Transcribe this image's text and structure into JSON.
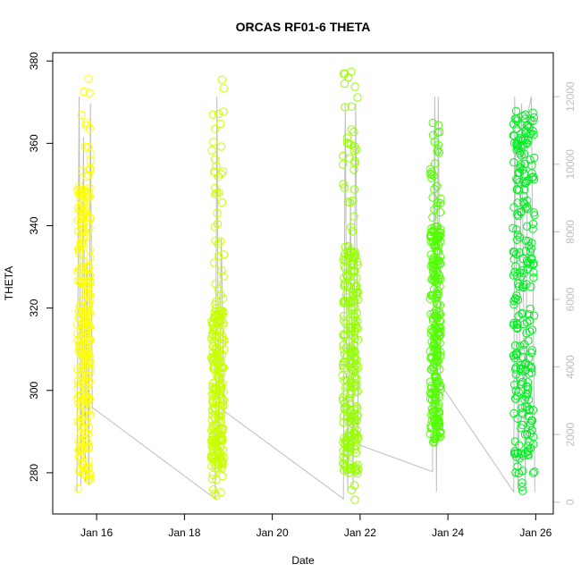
{
  "chart_data": {
    "type": "scatter",
    "title": "ORCAS RF01-6 THETA",
    "xlabel": "Date",
    "ylabel": "THETA",
    "x_ticks": [
      "Jan 16",
      "Jan 18",
      "Jan 20",
      "Jan 22",
      "Jan 24",
      "Jan 26"
    ],
    "x_tick_days": [
      16,
      18,
      20,
      22,
      24,
      26
    ],
    "xlim_days": [
      15.0,
      26.4
    ],
    "y_ticks": [
      280,
      300,
      320,
      340,
      360,
      380
    ],
    "ylim": [
      270,
      382
    ],
    "y2_ticks": [
      0,
      2000,
      4000,
      6000,
      8000,
      10000,
      12000
    ],
    "y2lim": [
      -350,
      13300
    ],
    "grid": false,
    "legend": "none",
    "series": [
      {
        "color": "#ffff00",
        "flight_start_day": 15.55,
        "flight_end_day": 15.88,
        "theta_range": [
          275,
          376
        ],
        "dense_theta_range": [
          278,
          350
        ]
      },
      {
        "color": "#c8ff00",
        "flight_start_day": 18.6,
        "flight_end_day": 18.92,
        "theta_range": [
          271,
          376
        ],
        "dense_theta_range": [
          281,
          320
        ]
      },
      {
        "color": "#96ff00",
        "flight_start_day": 21.58,
        "flight_end_day": 21.98,
        "theta_range": [
          273,
          378
        ],
        "dense_theta_range": [
          280,
          335
        ]
      },
      {
        "color": "#50ff00",
        "flight_start_day": 23.58,
        "flight_end_day": 23.85,
        "theta_range": [
          287,
          365
        ],
        "dense_theta_range": [
          288,
          340
        ]
      },
      {
        "color": "#00ee20",
        "flight_start_day": 25.45,
        "flight_end_day": 26.0,
        "theta_range": [
          272,
          370
        ],
        "dense_theta_range": [
          280,
          368
        ]
      }
    ],
    "altitude_line": {
      "color": "#bdbdbd",
      "points": [
        [
          15.55,
          300
        ],
        [
          15.6,
          12000
        ],
        [
          15.64,
          500
        ],
        [
          15.7,
          10800
        ],
        [
          15.74,
          600
        ],
        [
          15.78,
          7200
        ],
        [
          15.82,
          500
        ],
        [
          15.86,
          11800
        ],
        [
          15.9,
          2800
        ],
        [
          18.7,
          100
        ],
        [
          18.74,
          12000
        ],
        [
          18.78,
          1500
        ],
        [
          18.84,
          7800
        ],
        [
          18.9,
          2700
        ],
        [
          21.62,
          100
        ],
        [
          21.66,
          11800
        ],
        [
          21.72,
          300
        ],
        [
          21.78,
          9000
        ],
        [
          21.84,
          500
        ],
        [
          21.9,
          11800
        ],
        [
          21.96,
          1700
        ],
        [
          23.65,
          900
        ],
        [
          23.7,
          12000
        ],
        [
          23.74,
          300
        ],
        [
          23.78,
          12000
        ],
        [
          23.83,
          3500
        ],
        [
          25.5,
          300
        ],
        [
          25.52,
          12000
        ],
        [
          25.6,
          400
        ],
        [
          25.68,
          11800
        ],
        [
          25.76,
          500
        ],
        [
          25.82,
          11500
        ],
        [
          25.9,
          12000
        ],
        [
          25.98,
          300
        ]
      ]
    }
  }
}
